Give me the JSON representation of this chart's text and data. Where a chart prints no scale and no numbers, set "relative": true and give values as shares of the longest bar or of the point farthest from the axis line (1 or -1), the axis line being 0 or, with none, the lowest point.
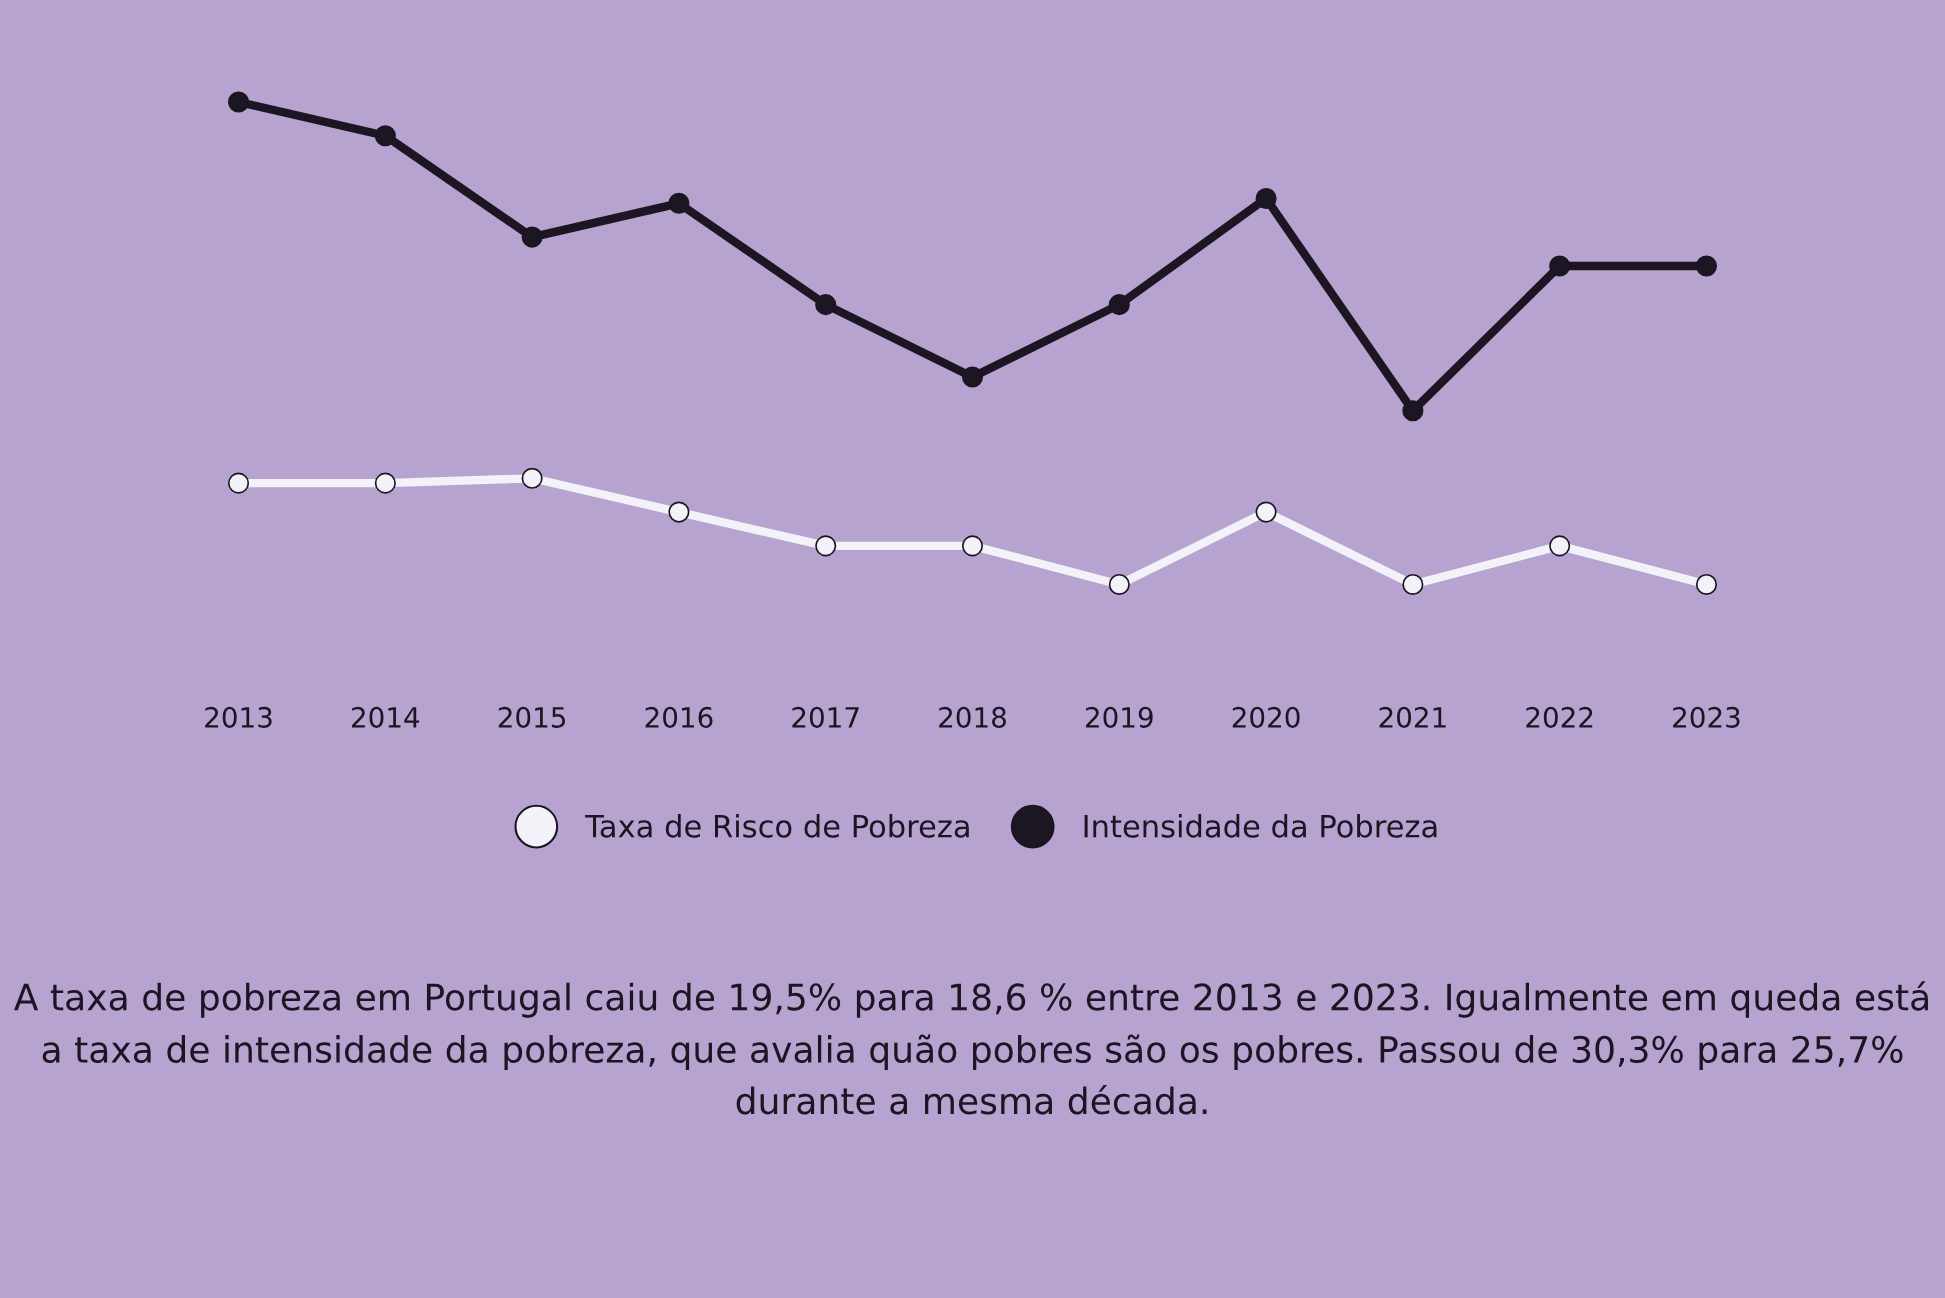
{
  "chart_data": {
    "type": "line",
    "relative": true,
    "categories": [
      "2013",
      "2014",
      "2015",
      "2016",
      "2017",
      "2018",
      "2019",
      "2020",
      "2021",
      "2022",
      "2023"
    ],
    "series": [
      {
        "name": "Taxa de Risco de Pobreza",
        "color": "#f2f2f8",
        "values": [
          0.21,
          0.21,
          0.22,
          0.15,
          0.08,
          0.08,
          0.0,
          0.15,
          0.0,
          0.08,
          0.0
        ]
      },
      {
        "name": "Intensidade da Pobreza",
        "color": "#1c1622",
        "values": [
          1.0,
          0.93,
          0.72,
          0.79,
          0.58,
          0.43,
          0.58,
          0.8,
          0.36,
          0.66,
          0.66
        ]
      }
    ],
    "marker": "circle",
    "line_style": "solid",
    "grid": false,
    "legend": "bottom",
    "annotations": [
      "A taxa de pobreza em Portugal caiu de 19,5% para 18,6 % entre 2013 e 2023. Igualmente em queda está a taxa de intensidade da pobreza, que avalia quão pobres são os pobres. Passou de 30,3% para 25,7% durante a mesma década."
    ]
  }
}
